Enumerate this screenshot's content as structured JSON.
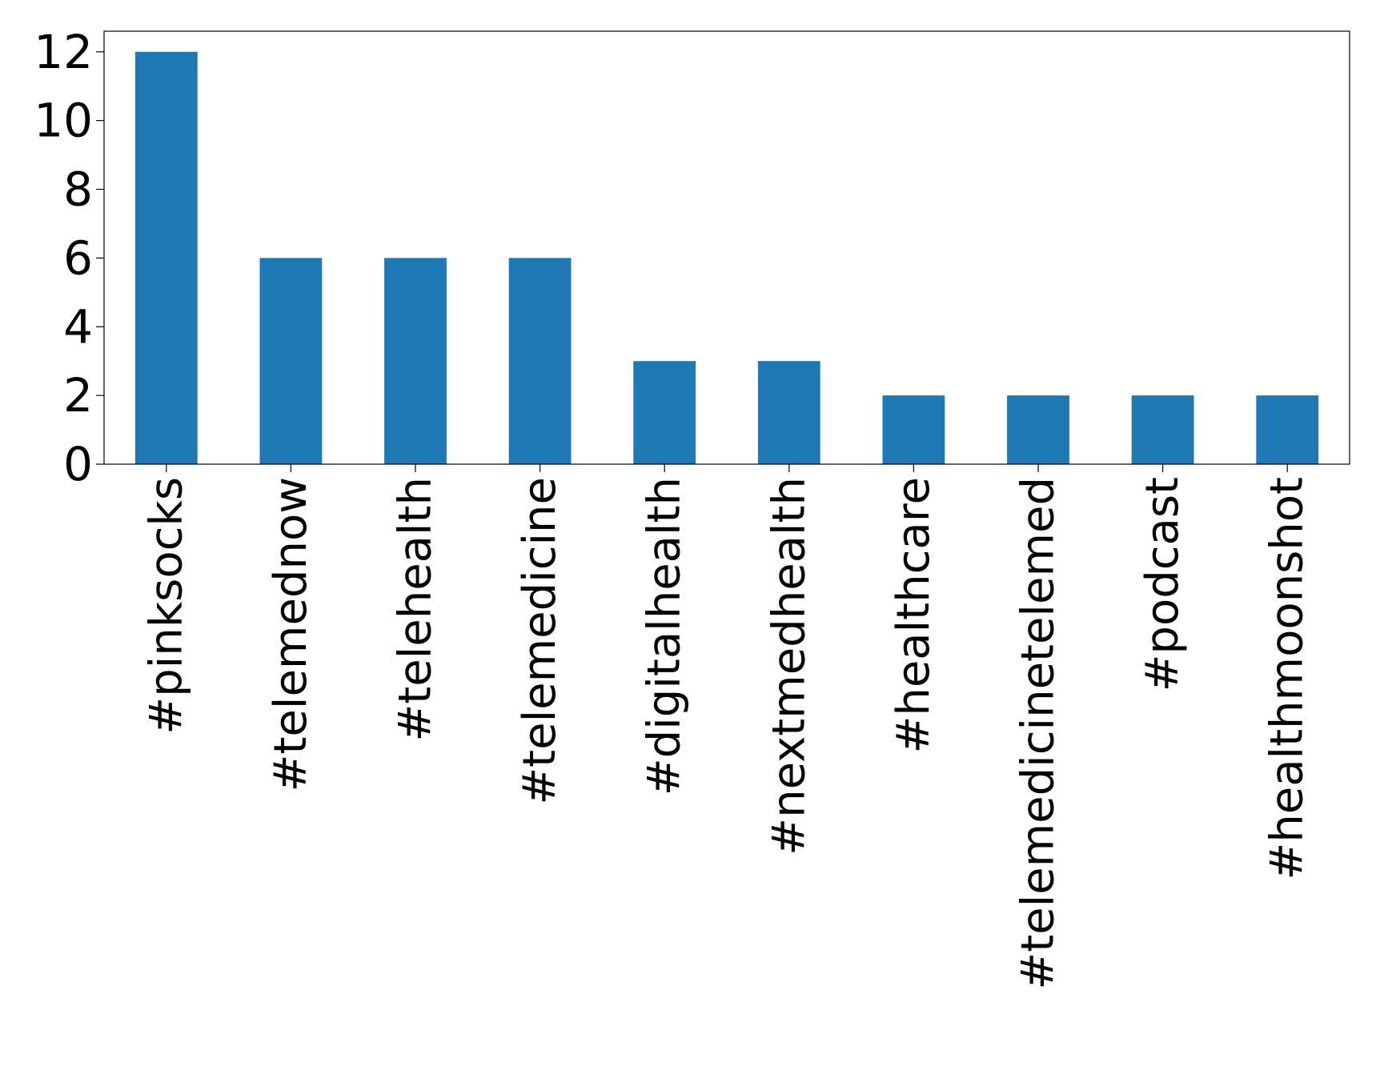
{
  "chart_data": {
    "type": "bar",
    "title": "",
    "xlabel": "",
    "ylabel": "",
    "categories": [
      "#pinksocks",
      "#telemednow",
      "#telehealth",
      "#telemedicine",
      "#digitalhealth",
      "#nextmedhealth",
      "#healthcare",
      "#telemedicinetelemed",
      "#podcast",
      "#healthmoonshot"
    ],
    "values": [
      12,
      6,
      6,
      6,
      3,
      3,
      2,
      2,
      2,
      2
    ],
    "ylim": [
      0,
      12.6
    ],
    "yticks": [
      0,
      2,
      4,
      6,
      8,
      10,
      12
    ],
    "ytick_labels": [
      "0",
      "2",
      "4",
      "6",
      "8",
      "10",
      "12"
    ],
    "grid": false,
    "legend": "none",
    "bar_color": "#1f77b4"
  }
}
